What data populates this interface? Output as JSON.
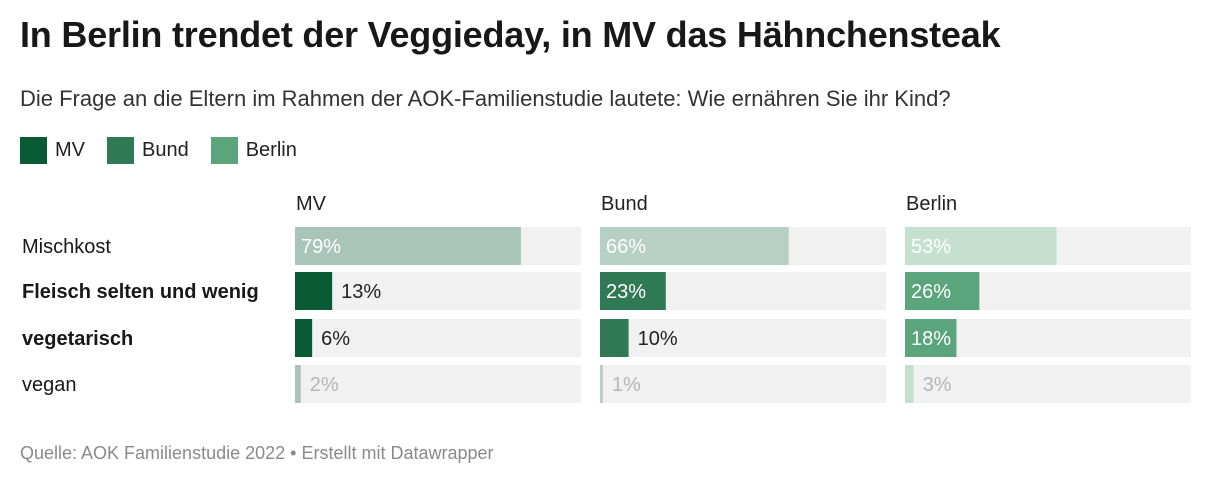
{
  "title": "In Berlin trendet der Veggieday, in MV das Hähnchensteak",
  "subtitle": "Die Frage an die Eltern im Rahmen der AOK-Familienstudie lautete: Wie ernähren Sie ihr Kind?",
  "source": "Quelle: AOK Familienstudie 2022 • Erstellt mit Datawrapper",
  "colors": {
    "MV": "#0a5a36",
    "Bund": "#2f7a55",
    "Berlin": "#5aa57c",
    "track": "#f1f1f1"
  },
  "chart_data": {
    "type": "bar",
    "orientation": "horizontal",
    "layout": "small-multiples",
    "value_suffix": "%",
    "xlim": [
      0,
      100
    ],
    "categories": [
      "Mischkost",
      "Fleisch selten und wenig",
      "vegetarisch",
      "vegan"
    ],
    "category_emphasis": [
      false,
      true,
      true,
      false
    ],
    "series": [
      {
        "name": "MV",
        "values": [
          79,
          13,
          6,
          2
        ]
      },
      {
        "name": "Bund",
        "values": [
          66,
          23,
          10,
          1
        ]
      },
      {
        "name": "Berlin",
        "values": [
          53,
          26,
          18,
          3
        ]
      }
    ],
    "legend": [
      "MV",
      "Bund",
      "Berlin"
    ],
    "legend_position": "top-left",
    "grid": false
  }
}
